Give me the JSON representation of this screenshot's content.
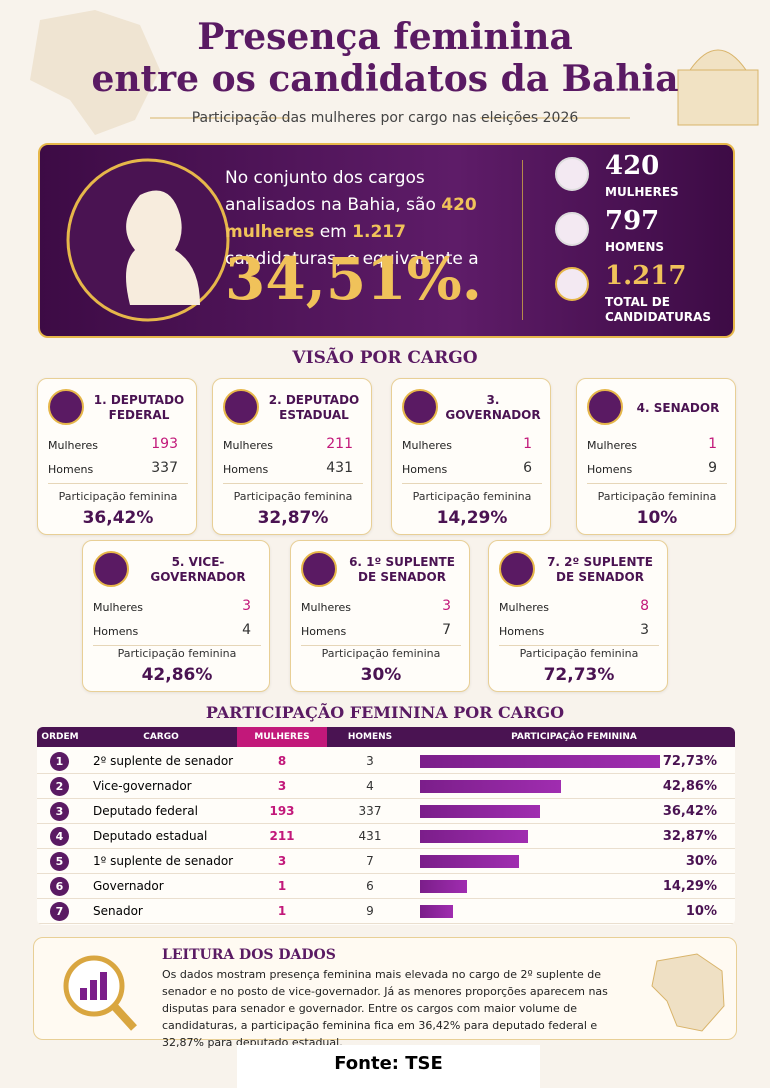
{
  "header": {
    "title_lines": [
      "Presença feminina",
      "entre os candidatos da Bahia"
    ],
    "subtitle": "Participação das mulheres por cargo nas eleições 2026"
  },
  "summary": {
    "text_1": "No conjunto dos cargos analisados na Bahia, são",
    "highlight_1": "420 mulheres",
    "text_2": "em",
    "highlight_2": "1.217",
    "text_3": "candidaturas, o equivalente a",
    "big": "34,51%."
  },
  "stats": [
    {
      "value": 420,
      "label": "MULHERES"
    },
    {
      "value": 797,
      "label": "HOMENS"
    },
    {
      "value": "1.217",
      "label": "TOTAL DE CANDIDATURAS"
    }
  ],
  "cards_title": "VISÃO POR CARGO",
  "card_labels": {
    "women": "Mulheres",
    "men": "Homens",
    "share": "Participação feminina"
  },
  "cards": [
    {
      "title": "1. DEPUTADO FEDERAL",
      "women": 193,
      "men": 337,
      "share": "36,42%"
    },
    {
      "title": "2. DEPUTADO ESTADUAL",
      "women": 211,
      "men": 431,
      "share": "32,87%"
    },
    {
      "title": "3. GOVERNADOR",
      "women": 1,
      "men": 6,
      "share": "14,29%"
    },
    {
      "title": "4. SENADOR",
      "women": 1,
      "men": 9,
      "share": "10%"
    },
    {
      "title": "5. VICE-GOVERNADOR",
      "women": 3,
      "men": 4,
      "share": "42,86%"
    },
    {
      "title": "6. 1º SUPLENTE DE SENADOR",
      "women": 3,
      "men": 7,
      "share": "30%"
    },
    {
      "title": "7. 2º SUPLENTE DE SENADOR",
      "women": 8,
      "men": 3,
      "share": "72,73%"
    }
  ],
  "table": {
    "title": "PARTICIPAÇÃO FEMININA POR CARGO",
    "columns": [
      "ORDEM",
      "CARGO",
      "MULHERES",
      "HOMENS",
      "PARTICIPAÇÃO FEMININA"
    ],
    "rows": [
      [
        1,
        "2º suplente de senador",
        8,
        3,
        {
          "value": 72.73,
          "label": "72,73%"
        }
      ],
      [
        2,
        "Vice-governador",
        3,
        4,
        {
          "value": 42.86,
          "label": "42,86%"
        }
      ],
      [
        3,
        "Deputado federal",
        193,
        337,
        {
          "value": 36.42,
          "label": "36,42%"
        }
      ],
      [
        4,
        "Deputado estadual",
        211,
        431,
        {
          "value": 32.87,
          "label": "32,87%"
        }
      ],
      [
        5,
        "1º suplente de senador",
        3,
        7,
        {
          "value": 30,
          "label": "30%"
        }
      ],
      [
        6,
        "Governador",
        1,
        6,
        {
          "value": 14.29,
          "label": "14,29%"
        }
      ],
      [
        7,
        "Senador",
        1,
        9,
        {
          "value": 10,
          "label": "10%"
        }
      ]
    ]
  },
  "reading": {
    "title": "LEITURA DOS DADOS",
    "text": "Os dados mostram presença feminina mais elevada no cargo de 2º suplente de senador e no posto de vice-governador. Já as menores proporções aparecem nas disputas para senador e governador. Entre os cargos com maior volume de candidaturas, a participação feminina fica em 36,42% para deputado federal e 32,87% para deputado estadual."
  },
  "footer": {
    "source": "Fonte: TSE"
  }
}
